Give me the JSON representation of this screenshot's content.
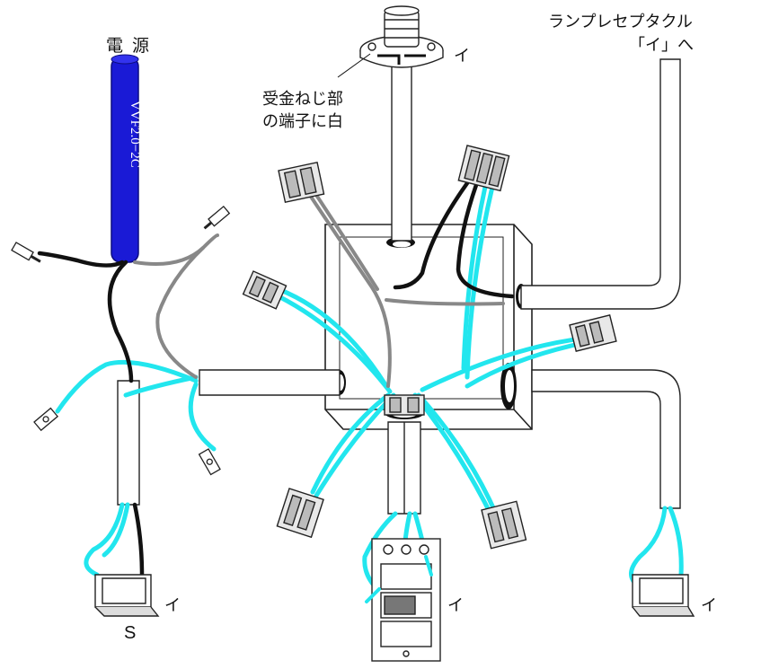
{
  "labels": {
    "power_source": "電 源",
    "cable_type": "VVF2.0−2C",
    "lamp_receptacle_line1": "ランプレセプタクル",
    "lamp_receptacle_line2": "「イ」へ",
    "terminal_note_line1": "受金ねじ部",
    "terminal_note_line2": "の端子に白",
    "switch_symbol": "S",
    "mark_i_lamp": "イ",
    "mark_i_switch_left": "イ",
    "mark_i_switch_center": "イ",
    "mark_i_switch_right": "イ"
  },
  "colors": {
    "cable_blue": "#1a1ad6",
    "wire_white_highlight": "#22e6ee",
    "wire_black": "#111111",
    "cable_sheath": "#ffffff",
    "outline": "#222222"
  }
}
